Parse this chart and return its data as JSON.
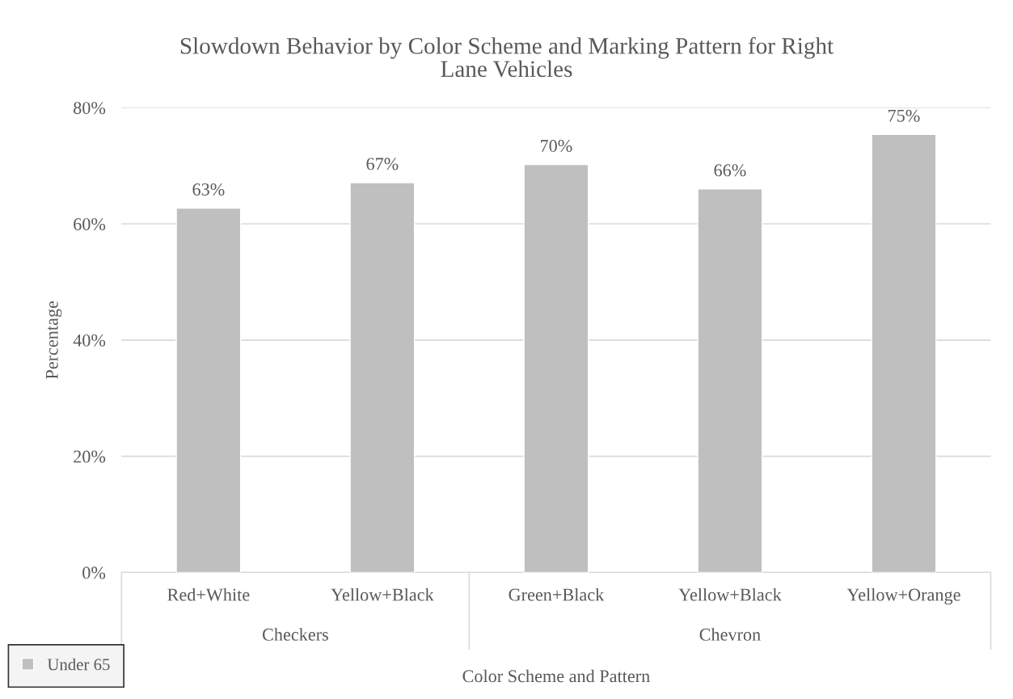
{
  "chart_data": {
    "type": "bar",
    "title": "Slowdown Behavior by Color Scheme and Marking Pattern for Right Lane Vehicles",
    "xlabel": "Color Scheme and Pattern",
    "ylabel": "Percentage",
    "categories": [
      "Red+White",
      "Yellow+Black",
      "Green+Black",
      "Yellow+Black",
      "Yellow+Orange"
    ],
    "series": [
      {
        "name": "Under 65",
        "color": "#bfbfbf",
        "values": [
          62.7,
          67.1,
          70.2,
          66.0,
          75.4
        ],
        "value_labels": [
          "63%",
          "67%",
          "70%",
          "66%",
          "75%"
        ]
      }
    ],
    "annotations": [
      "Checkers",
      "Chevron"
    ],
    "ylim": [
      0,
      80
    ],
    "yticks": [
      {
        "value": 0,
        "label": "0%"
      },
      {
        "value": 20,
        "label": "20%"
      },
      {
        "value": 40,
        "label": "40%"
      },
      {
        "value": 60,
        "label": "60%"
      },
      {
        "value": 80,
        "label": "80%"
      }
    ],
    "grid": "y",
    "legend": "bottom left"
  }
}
